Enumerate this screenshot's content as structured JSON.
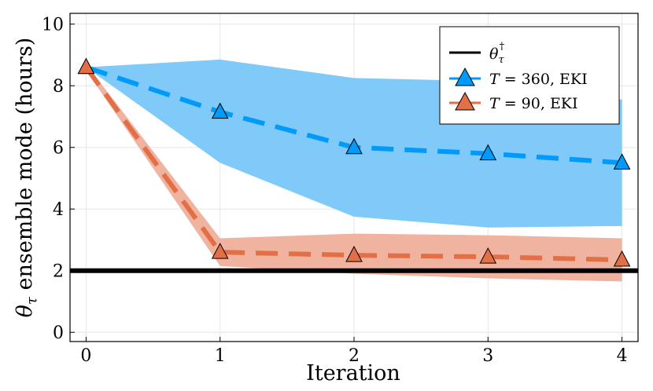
{
  "chart_data": {
    "type": "line",
    "xlabel": "Iteration",
    "ylabel_symbol": "θ",
    "ylabel_sub": "τ",
    "ylabel_rest": " ensemble mode (hours)",
    "xlim": [
      -0.12,
      4.12
    ],
    "ylim": [
      -0.3,
      10.35
    ],
    "xticks": [
      0,
      1,
      2,
      3,
      4
    ],
    "yticks": [
      0,
      2,
      4,
      6,
      8,
      10
    ],
    "grid": true,
    "legend_position": "top-right",
    "reference_line": {
      "name": "θτ†",
      "value": 2.0,
      "color": "#000000"
    },
    "series": [
      {
        "name": "T = 360, EKI",
        "legend_t": "T",
        "legend_eq": " = 360,  EKI",
        "color": "#009AFA",
        "band_color": "#7FCAF9",
        "x": [
          0,
          1,
          2,
          3,
          4
        ],
        "y": [
          8.6,
          7.15,
          6.0,
          5.8,
          5.5
        ],
        "band_lower": [
          8.6,
          5.5,
          3.75,
          3.4,
          3.45
        ],
        "band_upper": [
          8.6,
          8.85,
          8.25,
          8.15,
          7.55
        ]
      },
      {
        "name": "T = 90, EKI",
        "legend_t": "T",
        "legend_eq": " = 90, EKI",
        "color": "#E26F46",
        "band_color": "#F0B3A0",
        "x": [
          0,
          1,
          2,
          3,
          4
        ],
        "y": [
          8.6,
          2.6,
          2.5,
          2.45,
          2.35
        ],
        "band_lower": [
          8.5,
          2.15,
          1.9,
          1.75,
          1.65
        ],
        "band_upper": [
          8.7,
          3.05,
          3.2,
          3.15,
          3.05
        ]
      }
    ]
  }
}
